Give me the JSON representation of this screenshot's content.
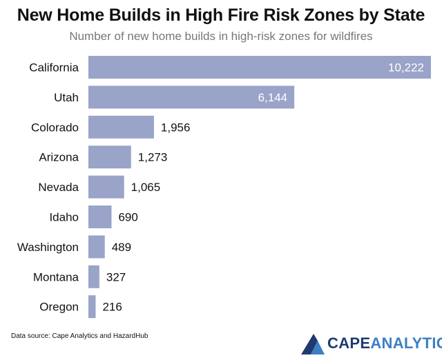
{
  "chart_data": {
    "type": "bar",
    "orientation": "horizontal",
    "title": "New Home Builds in High Fire Risk Zones by State",
    "subtitle": "Number of new home builds in high-risk zones for wildfires",
    "categories": [
      "California",
      "Utah",
      "Colorado",
      "Arizona",
      "Nevada",
      "Idaho",
      "Washington",
      "Montana",
      "Oregon"
    ],
    "values": [
      10222,
      6144,
      1956,
      1273,
      1065,
      690,
      489,
      327,
      216
    ],
    "value_labels": [
      "10,222",
      "6,144",
      "1,956",
      "1,273",
      "1,065",
      "690",
      "489",
      "327",
      "216"
    ],
    "xlim": [
      0,
      10222
    ],
    "grid": false,
    "legend": "none",
    "bar_color": "#9aa3c8",
    "label_inside_color": "#ffffff",
    "label_outside_color": "#111111"
  },
  "source": "Data source: Cape Analytics and HazardHub",
  "logo": {
    "part1": "CAPE",
    "part2": "ANALYTICS",
    "dark_color": "#1f3a6e",
    "light_color": "#3c7fc4"
  }
}
